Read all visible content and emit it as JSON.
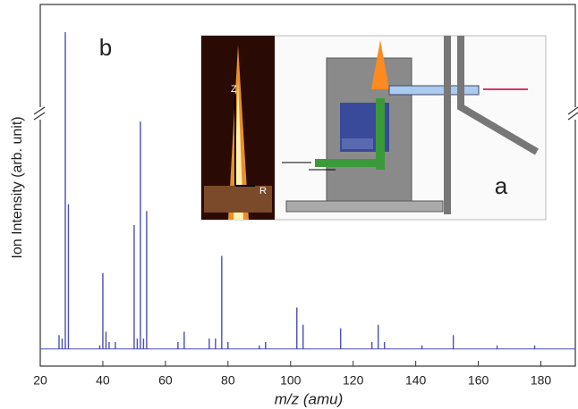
{
  "chart_data": {
    "type": "stick",
    "x_label": "m/z (amu)",
    "y_label": "Ion Intensity (arb. unit)",
    "panel_label": "b",
    "inset": {
      "label": "a",
      "axis_labels": [
        "Z",
        "R"
      ]
    },
    "x": [
      26,
      27,
      28,
      29,
      39,
      40,
      41,
      42,
      44,
      50,
      51,
      52,
      53,
      54,
      64,
      66,
      74,
      76,
      78,
      80,
      90,
      92,
      102,
      104,
      116,
      126,
      128,
      130,
      142,
      152,
      166,
      178
    ],
    "values": [
      4,
      3,
      92,
      42,
      1,
      22,
      5,
      2,
      2,
      36,
      3,
      66,
      3,
      40,
      2,
      5,
      3,
      3,
      27,
      2,
      1,
      2,
      12,
      7,
      6,
      2,
      7,
      2,
      1,
      4,
      1,
      1
    ],
    "color": "#4a4fb0",
    "xlim": [
      20,
      191
    ],
    "xticks": [
      20,
      40,
      60,
      80,
      100,
      120,
      140,
      160,
      180
    ],
    "ylim": [
      -5,
      100
    ]
  }
}
